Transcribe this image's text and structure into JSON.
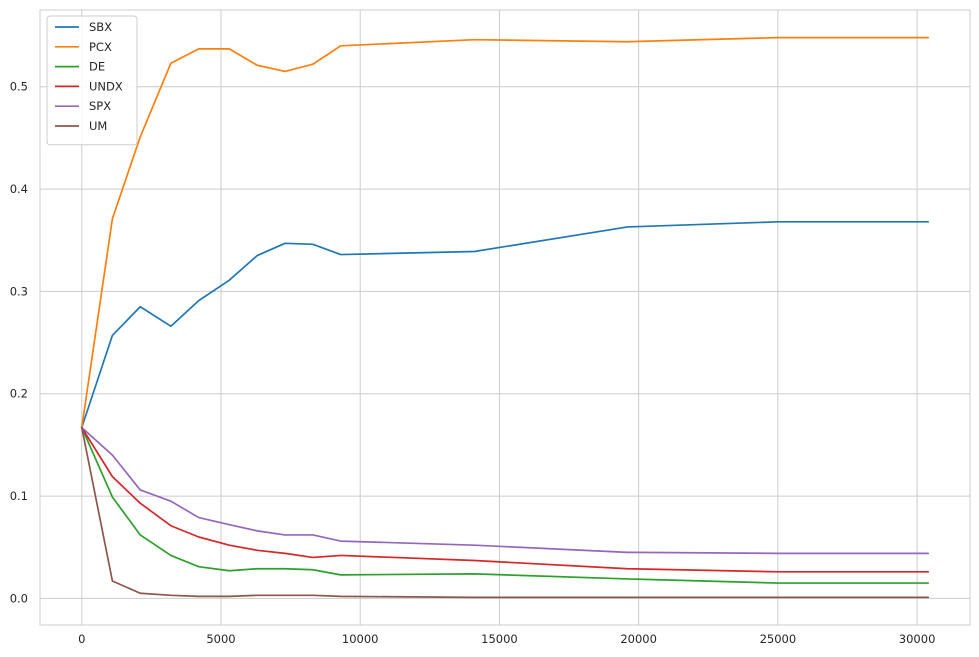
{
  "chart_data": {
    "type": "line",
    "title": "",
    "xlabel": "",
    "ylabel": "",
    "xlim": [
      -1500,
      31900
    ],
    "ylim": [
      -0.026,
      0.575
    ],
    "grid": true,
    "legend_position": "top-left",
    "x_ticks": [
      0,
      5000,
      10000,
      15000,
      20000,
      25000,
      30000
    ],
    "x_tick_labels": [
      "0",
      "5000",
      "10000",
      "15000",
      "20000",
      "25000",
      "30000"
    ],
    "y_ticks": [
      0.0,
      0.1,
      0.2,
      0.3,
      0.4,
      0.5
    ],
    "y_tick_labels": [
      "0.0",
      "0.1",
      "0.2",
      "0.3",
      "0.4",
      "0.5"
    ],
    "x": [
      0,
      1100,
      2100,
      3200,
      4200,
      5300,
      6300,
      7300,
      8300,
      9300,
      14100,
      19600,
      25000,
      30400
    ],
    "series": [
      {
        "name": "SBX",
        "color": "#1f77b4",
        "values": [
          0.167,
          0.257,
          0.285,
          0.266,
          0.291,
          0.311,
          0.335,
          0.347,
          0.346,
          0.336,
          0.339,
          0.363,
          0.368,
          0.368
        ]
      },
      {
        "name": "PCX",
        "color": "#ff7f0e",
        "values": [
          0.167,
          0.371,
          0.451,
          0.523,
          0.537,
          0.537,
          0.521,
          0.515,
          0.522,
          0.54,
          0.546,
          0.544,
          0.548,
          0.548
        ]
      },
      {
        "name": "DE",
        "color": "#2ca02c",
        "values": [
          0.167,
          0.099,
          0.062,
          0.042,
          0.031,
          0.027,
          0.029,
          0.029,
          0.028,
          0.023,
          0.024,
          0.019,
          0.015,
          0.015
        ]
      },
      {
        "name": "UNDX",
        "color": "#d62728",
        "values": [
          0.167,
          0.119,
          0.093,
          0.071,
          0.06,
          0.052,
          0.047,
          0.044,
          0.04,
          0.042,
          0.037,
          0.029,
          0.026,
          0.026
        ]
      },
      {
        "name": "SPX",
        "color": "#9467bd",
        "values": [
          0.167,
          0.14,
          0.106,
          0.095,
          0.079,
          0.072,
          0.066,
          0.062,
          0.062,
          0.056,
          0.052,
          0.045,
          0.044,
          0.044
        ]
      },
      {
        "name": "UM",
        "color": "#8c564b",
        "values": [
          0.167,
          0.017,
          0.005,
          0.003,
          0.002,
          0.002,
          0.003,
          0.003,
          0.003,
          0.002,
          0.001,
          0.001,
          0.001,
          0.001
        ]
      }
    ]
  }
}
